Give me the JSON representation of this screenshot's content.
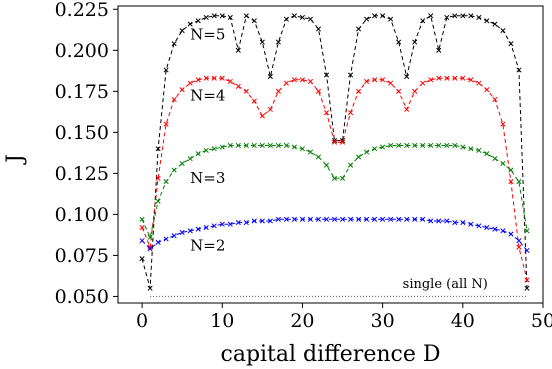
{
  "chart_data": {
    "type": "line",
    "xlabel": "capital difference D",
    "ylabel": "J",
    "xlim": [
      -3,
      50
    ],
    "ylim": [
      0.046,
      0.227
    ],
    "xticks": [
      0,
      10,
      20,
      30,
      40,
      50
    ],
    "yticks": [
      0.05,
      0.075,
      0.1,
      0.125,
      0.15,
      0.175,
      0.2,
      0.225
    ],
    "xtick_labels": [
      "0",
      "10",
      "20",
      "30",
      "40",
      "50"
    ],
    "ytick_labels": [
      "0.050",
      "0.075",
      "0.100",
      "0.125",
      "0.150",
      "0.175",
      "0.200",
      "0.225"
    ],
    "grid": false,
    "annotations": [
      {
        "text": "N=5",
        "series": "N=5"
      },
      {
        "text": "N=4",
        "series": "N=4"
      },
      {
        "text": "N=3",
        "series": "N=3"
      },
      {
        "text": "N=2",
        "series": "N=2"
      },
      {
        "text": "single (all N)",
        "series": "single"
      }
    ],
    "series": [
      {
        "id": "N=5",
        "color": "#000000",
        "style": "dashed-with-x-markers",
        "x": [
          0,
          1,
          2,
          3,
          4,
          5,
          6,
          7,
          8,
          9,
          10,
          11,
          12,
          13,
          14,
          15,
          16,
          17,
          18,
          19,
          20,
          21,
          22,
          23,
          24,
          25,
          26,
          27,
          28,
          29,
          30,
          31,
          32,
          33,
          34,
          35,
          36,
          37,
          38,
          39,
          40,
          41,
          42,
          43,
          44,
          45,
          46,
          47,
          48
        ],
        "y": [
          0.073,
          0.055,
          0.14,
          0.188,
          0.204,
          0.212,
          0.216,
          0.218,
          0.22,
          0.221,
          0.221,
          0.22,
          0.2,
          0.221,
          0.218,
          0.205,
          0.184,
          0.205,
          0.219,
          0.221,
          0.22,
          0.219,
          0.213,
          0.185,
          0.145,
          0.145,
          0.185,
          0.213,
          0.219,
          0.221,
          0.221,
          0.219,
          0.205,
          0.184,
          0.205,
          0.218,
          0.221,
          0.2,
          0.22,
          0.221,
          0.221,
          0.221,
          0.22,
          0.218,
          0.216,
          0.212,
          0.204,
          0.188,
          0.055
        ]
      },
      {
        "id": "N=4",
        "color": "#ff0000",
        "style": "dashed-with-x-markers",
        "x": [
          0,
          1,
          2,
          3,
          4,
          5,
          6,
          7,
          8,
          9,
          10,
          11,
          12,
          13,
          14,
          15,
          16,
          17,
          18,
          19,
          20,
          21,
          22,
          23,
          24,
          25,
          26,
          27,
          28,
          29,
          30,
          31,
          32,
          33,
          34,
          35,
          36,
          37,
          38,
          39,
          40,
          41,
          42,
          43,
          44,
          45,
          46,
          47,
          48
        ],
        "y": [
          0.092,
          0.08,
          0.122,
          0.155,
          0.17,
          0.176,
          0.18,
          0.182,
          0.183,
          0.183,
          0.183,
          0.181,
          0.178,
          0.175,
          0.169,
          0.16,
          0.164,
          0.175,
          0.18,
          0.182,
          0.182,
          0.181,
          0.175,
          0.162,
          0.144,
          0.144,
          0.162,
          0.175,
          0.181,
          0.182,
          0.182,
          0.18,
          0.175,
          0.164,
          0.175,
          0.18,
          0.182,
          0.183,
          0.183,
          0.183,
          0.183,
          0.182,
          0.18,
          0.176,
          0.17,
          0.155,
          0.12,
          0.08,
          0.06
        ]
      },
      {
        "id": "N=3",
        "color": "#008000",
        "style": "dashed-with-x-markers",
        "x": [
          0,
          1,
          2,
          3,
          4,
          5,
          6,
          7,
          8,
          9,
          10,
          11,
          12,
          13,
          14,
          15,
          16,
          17,
          18,
          19,
          20,
          21,
          22,
          23,
          24,
          25,
          26,
          27,
          28,
          29,
          30,
          31,
          32,
          33,
          34,
          35,
          36,
          37,
          38,
          39,
          40,
          41,
          42,
          43,
          44,
          45,
          46,
          47,
          48
        ],
        "y": [
          0.097,
          0.086,
          0.108,
          0.12,
          0.127,
          0.131,
          0.134,
          0.137,
          0.139,
          0.14,
          0.141,
          0.142,
          0.142,
          0.142,
          0.142,
          0.142,
          0.142,
          0.142,
          0.142,
          0.141,
          0.14,
          0.138,
          0.135,
          0.13,
          0.122,
          0.122,
          0.13,
          0.135,
          0.138,
          0.14,
          0.141,
          0.142,
          0.142,
          0.142,
          0.142,
          0.142,
          0.142,
          0.142,
          0.142,
          0.142,
          0.141,
          0.14,
          0.139,
          0.137,
          0.134,
          0.131,
          0.127,
          0.12,
          0.09
        ]
      },
      {
        "id": "N=2",
        "color": "#0000ff",
        "style": "dashed-with-x-markers",
        "x": [
          0,
          1,
          2,
          3,
          4,
          5,
          6,
          7,
          8,
          9,
          10,
          11,
          12,
          13,
          14,
          15,
          16,
          17,
          18,
          19,
          20,
          21,
          22,
          23,
          24,
          25,
          26,
          27,
          28,
          29,
          30,
          31,
          32,
          33,
          34,
          35,
          36,
          37,
          38,
          39,
          40,
          41,
          42,
          43,
          44,
          45,
          46,
          47,
          48
        ],
        "y": [
          0.084,
          0.079,
          0.083,
          0.085,
          0.087,
          0.089,
          0.09,
          0.091,
          0.092,
          0.093,
          0.094,
          0.094,
          0.095,
          0.095,
          0.096,
          0.096,
          0.096,
          0.097,
          0.097,
          0.097,
          0.097,
          0.097,
          0.097,
          0.097,
          0.097,
          0.097,
          0.097,
          0.097,
          0.097,
          0.097,
          0.097,
          0.097,
          0.097,
          0.097,
          0.097,
          0.097,
          0.096,
          0.096,
          0.096,
          0.095,
          0.095,
          0.094,
          0.093,
          0.092,
          0.091,
          0.09,
          0.088,
          0.084,
          0.078
        ]
      },
      {
        "id": "single",
        "color": "#555555",
        "style": "dotted",
        "x": [
          1,
          48
        ],
        "y": [
          0.05,
          0.05
        ]
      }
    ]
  }
}
